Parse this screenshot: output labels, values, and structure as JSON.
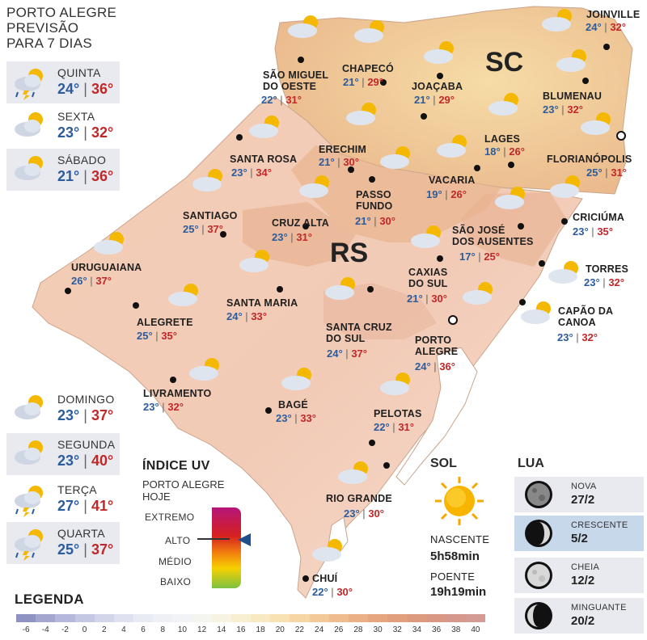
{
  "header": {
    "line1": "PORTO ALEGRE",
    "line2": "PREVISÃO",
    "line3": "PARA 7 DIAS"
  },
  "forecast": [
    {
      "day": "QUINTA",
      "min": "24°",
      "max": "36°",
      "icon": "sun-cloud-storm-icon"
    },
    {
      "day": "SEXTA",
      "min": "23°",
      "max": "32°",
      "icon": "sun-cloud-icon"
    },
    {
      "day": "SÁBADO",
      "min": "21°",
      "max": "36°",
      "icon": "sun-cloud-icon"
    },
    {
      "day": "DOMINGO",
      "min": "23°",
      "max": "37°",
      "icon": "sun-cloud-icon"
    },
    {
      "day": "SEGUNDA",
      "min": "23°",
      "max": "40°",
      "icon": "sun-cloud-icon"
    },
    {
      "day": "TERÇA",
      "min": "27°",
      "max": "41°",
      "icon": "sun-cloud-storm-icon"
    },
    {
      "day": "QUARTA",
      "min": "25°",
      "max": "37°",
      "icon": "sun-cloud-storm-icon"
    }
  ],
  "states": {
    "sc": "SC",
    "rs": "RS"
  },
  "cities": [
    {
      "name": "JOINVILLE",
      "min": "24°",
      "max": "32°"
    },
    {
      "name": "CHAPECÓ",
      "min": "21°",
      "max": "29°"
    },
    {
      "name": "SÃO MIGUEL\nDO OESTE",
      "min": "22°",
      "max": "31°"
    },
    {
      "name": "JOAÇABA",
      "min": "21°",
      "max": "29°"
    },
    {
      "name": "BLUMENAU",
      "min": "23°",
      "max": "32°"
    },
    {
      "name": "LAGES",
      "min": "18°",
      "max": "26°"
    },
    {
      "name": "FLORIANÓPOLIS",
      "min": "25°",
      "max": "31°"
    },
    {
      "name": "ERECHIM",
      "min": "21°",
      "max": "30°"
    },
    {
      "name": "SANTA ROSA",
      "min": "23°",
      "max": "34°"
    },
    {
      "name": "VACARIA",
      "min": "19°",
      "max": "26°"
    },
    {
      "name": "PASSO\nFUNDO",
      "min": "21°",
      "max": "30°"
    },
    {
      "name": "SANTIAGO",
      "min": "25°",
      "max": "37°"
    },
    {
      "name": "CRUZ ALTA",
      "min": "23°",
      "max": "31°"
    },
    {
      "name": "CRICIÚMA",
      "min": "23°",
      "max": "35°"
    },
    {
      "name": "SÃO JOSÉ\nDOS AUSENTES",
      "min": "17°",
      "max": "25°"
    },
    {
      "name": "URUGUAIANA",
      "min": "26°",
      "max": "37°"
    },
    {
      "name": "CAXIAS\nDO SUL",
      "min": "21°",
      "max": "30°"
    },
    {
      "name": "TORRES",
      "min": "23°",
      "max": "32°"
    },
    {
      "name": "SANTA MARIA",
      "min": "24°",
      "max": "33°"
    },
    {
      "name": "CAPÃO DA\nCANOA",
      "min": "23°",
      "max": "32°"
    },
    {
      "name": "ALEGRETE",
      "min": "25°",
      "max": "35°"
    },
    {
      "name": "SANTA CRUZ\nDO SUL",
      "min": "24°",
      "max": "37°"
    },
    {
      "name": "PORTO\nALEGRE",
      "min": "24°",
      "max": "36°"
    },
    {
      "name": "LIVRAMENTO",
      "min": "23°",
      "max": "32°"
    },
    {
      "name": "BAGÉ",
      "min": "23°",
      "max": "33°"
    },
    {
      "name": "PELOTAS",
      "min": "22°",
      "max": "31°"
    },
    {
      "name": "RIO GRANDE",
      "min": "23°",
      "max": "30°"
    },
    {
      "name": "CHUÍ",
      "min": "22°",
      "max": "30°"
    }
  ],
  "uv": {
    "title": "ÍNDICE UV",
    "sub1": "PORTO ALEGRE",
    "sub2": "HOJE",
    "levels": [
      "EXTREMO",
      "ALTO",
      "MÉDIO",
      "BAIXO"
    ],
    "current": "ALTO"
  },
  "sun": {
    "title": "SOL",
    "rise_label": "NASCENTE",
    "rise_time": "5h58min",
    "set_label": "POENTE",
    "set_time": "19h19min"
  },
  "moon": {
    "title": "LUA",
    "phases": [
      {
        "name": "NOVA",
        "date": "27/2",
        "icon": "new-moon-icon"
      },
      {
        "name": "CRESCENTE",
        "date": "5/2",
        "icon": "waxing-moon-icon"
      },
      {
        "name": "CHEIA",
        "date": "12/2",
        "icon": "full-moon-icon"
      },
      {
        "name": "MINGUANTE",
        "date": "20/2",
        "icon": "waning-moon-icon"
      }
    ]
  },
  "legend": {
    "title": "LEGENDA",
    "ticks": [
      "-6",
      "-4",
      "-2",
      "0",
      "2",
      "4",
      "6",
      "8",
      "10",
      "12",
      "14",
      "16",
      "18",
      "20",
      "22",
      "24",
      "26",
      "28",
      "30",
      "32",
      "34",
      "36",
      "38",
      "40"
    ],
    "colors": [
      "#8f93c4",
      "#a3a7d0",
      "#b5b8da",
      "#c5c8e2",
      "#d3d6ea",
      "#dfe1f0",
      "#e8ebf3",
      "#eef0f5",
      "#f2f3f6",
      "#f5f5f0",
      "#f7f3e2",
      "#f8efd2",
      "#f9e9c2",
      "#f8e1b2",
      "#f6d6a4",
      "#f3c998",
      "#efbc8e",
      "#ebb086",
      "#e6a67f",
      "#e19f7d",
      "#dc9a7e",
      "#d99884",
      "#d6988c",
      "#d49a94"
    ]
  }
}
